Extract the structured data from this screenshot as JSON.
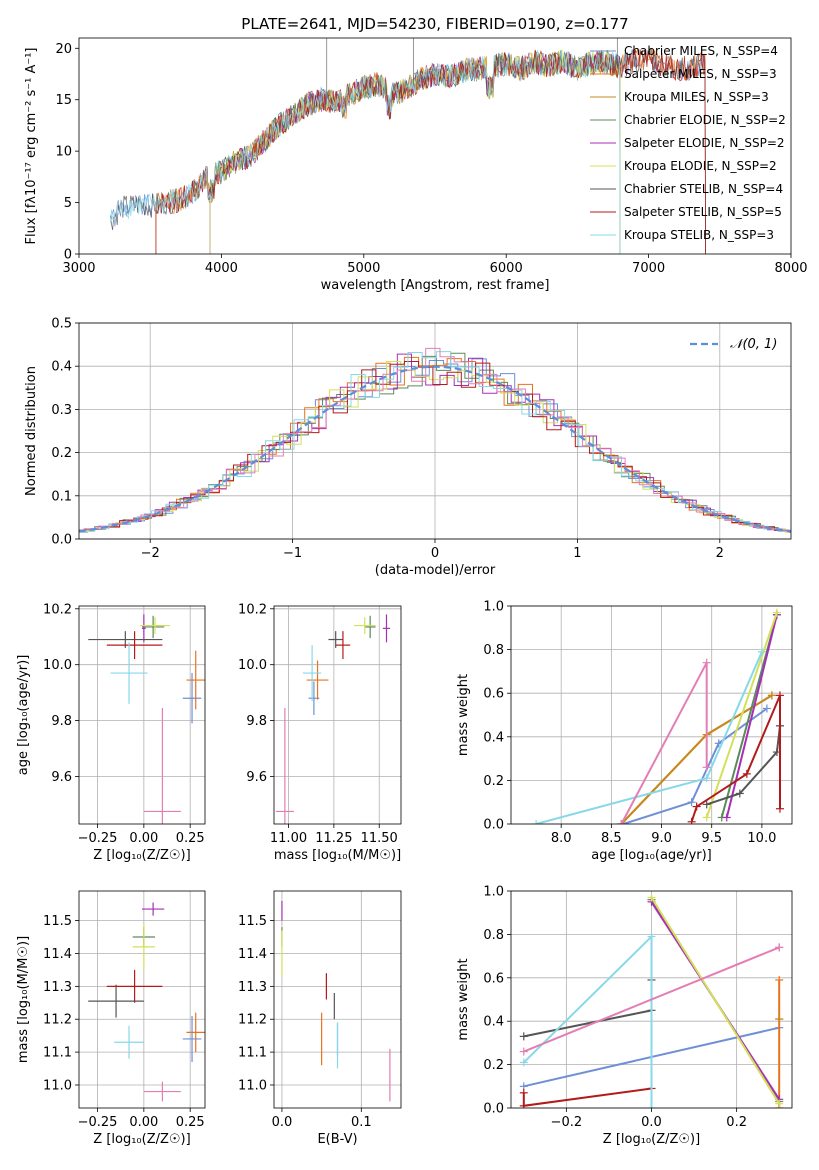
{
  "colors": {
    "chabrier_miles": "#6f8fd6",
    "salpeter_miles": "#e8731e",
    "kroupa_miles": "#c48a1c",
    "chabrier_elodie": "#5b8a5b",
    "salpeter_elodie": "#a630b3",
    "kroupa_elodie": "#d4e05a",
    "chabrier_stelib": "#555555",
    "salpeter_stelib": "#b31b1b",
    "kroupa_stelib": "#87d8e8",
    "pink": "#e37eb5",
    "normal": "#5b8fd9"
  },
  "chart_data": [
    {
      "type": "line",
      "title": "PLATE=2641, MJD=54230, FIBERID=0190, z=0.177",
      "xlabel": "wavelength [Angstrom, rest frame]",
      "ylabel": "Flux [fλ10⁻¹⁷ erg cm⁻² s⁻¹ A⁻¹]",
      "xlim": [
        3000,
        8000
      ],
      "ylim": [
        0,
        21
      ],
      "xticks": [
        3000,
        4000,
        5000,
        6000,
        7000,
        8000
      ],
      "yticks": [
        0,
        5,
        10,
        15,
        20
      ],
      "legend_position": "top-right",
      "series": [
        {
          "name": "Chabrier MILES, N_SSP=4",
          "color_key": "chabrier_miles"
        },
        {
          "name": "Salpeter MILES, N_SSP=3",
          "color_key": "salpeter_miles"
        },
        {
          "name": "Kroupa MILES, N_SSP=3",
          "color_key": "kroupa_miles"
        },
        {
          "name": "Chabrier ELODIE, N_SSP=2",
          "color_key": "chabrier_elodie"
        },
        {
          "name": "Salpeter ELODIE, N_SSP=2",
          "color_key": "salpeter_elodie"
        },
        {
          "name": "Kroupa ELODIE, N_SSP=2",
          "color_key": "kroupa_elodie"
        },
        {
          "name": "Chabrier STELIB, N_SSP=4",
          "color_key": "chabrier_stelib"
        },
        {
          "name": "Salpeter STELIB, N_SSP=5",
          "color_key": "salpeter_stelib"
        },
        {
          "name": "Kroupa STELIB, N_SSP=3",
          "color_key": "kroupa_stelib"
        }
      ],
      "spectrum_envelope": {
        "x": [
          3220,
          3300,
          3400,
          3500,
          3600,
          3700,
          3800,
          3900,
          4000,
          4100,
          4200,
          4300,
          4400,
          4500,
          4600,
          4700,
          4800,
          4900,
          5000,
          5100,
          5200,
          5300,
          5400,
          5500,
          5600,
          5700,
          5800,
          5900,
          6000,
          6100,
          6200,
          6300,
          6400,
          6500,
          6600,
          6700,
          6800,
          6900,
          7000,
          7100,
          7200,
          7300,
          7400
        ],
        "y": [
          3.2,
          4.5,
          4.8,
          4.7,
          5.0,
          5.2,
          6.0,
          7.5,
          8.0,
          9.0,
          9.5,
          11.0,
          12.5,
          13.5,
          14.5,
          15.0,
          14.8,
          15.5,
          16.2,
          16.5,
          15.5,
          16.0,
          17.0,
          17.5,
          17.2,
          17.8,
          18.0,
          18.2,
          18.5,
          18.0,
          18.7,
          18.3,
          18.8,
          18.0,
          18.6,
          18.7,
          18.2,
          18.8,
          19.0,
          18.4,
          18.0,
          18.1,
          18.5
        ]
      }
    },
    {
      "type": "histogram",
      "xlabel": "(data-model)/error",
      "ylabel": "Normed distribution",
      "xlim": [
        -2.5,
        2.5
      ],
      "ylim": [
        0,
        0.5
      ],
      "xticks": [
        -2,
        -1,
        0,
        1,
        2
      ],
      "yticks": [
        0.0,
        0.1,
        0.2,
        0.3,
        0.4,
        0.5
      ],
      "reference_curve": {
        "name": "𝒩(0, 1)",
        "mean": 0,
        "sigma": 1,
        "style": "dashed"
      },
      "bin_width": 0.1
    },
    {
      "type": "scatter",
      "xlabel": "Z [log₁₀(Z/Z☉)]",
      "ylabel": "age  [log₁₀(age/yr)]",
      "xlim": [
        -0.35,
        0.33
      ],
      "ylim": [
        9.43,
        10.21
      ],
      "xticks": [
        -0.25,
        0.0,
        0.25
      ],
      "yticks": [
        9.6,
        9.8,
        10.0,
        10.2
      ],
      "points": [
        {
          "color_key": "chabrier_miles",
          "x": 0.26,
          "y": 9.88,
          "xerr": 0.05,
          "yerr": 0.09
        },
        {
          "color_key": "salpeter_miles",
          "x": 0.28,
          "y": 9.945,
          "xerr": 0.05,
          "yerr": 0.105
        },
        {
          "color_key": "chabrier_elodie",
          "x": 0.05,
          "y": 10.135,
          "xerr": 0.06,
          "yerr": 0.04
        },
        {
          "color_key": "salpeter_elodie",
          "x": 0.0,
          "y": 10.13,
          "xerr": 0.01,
          "yerr": 0.05
        },
        {
          "color_key": "kroupa_elodie",
          "x": 0.06,
          "y": 10.14,
          "xerr": 0.08,
          "yerr": 0.03
        },
        {
          "color_key": "chabrier_stelib",
          "x": -0.1,
          "y": 10.09,
          "xerr": 0.2,
          "yerr": 0.03
        },
        {
          "color_key": "salpeter_stelib",
          "x": -0.05,
          "y": 10.07,
          "xerr": 0.15,
          "yerr": 0.05
        },
        {
          "color_key": "kroupa_stelib",
          "x": -0.08,
          "y": 9.97,
          "xerr": 0.1,
          "yerr": 0.11
        },
        {
          "color_key": "pink",
          "x": 0.1,
          "y": 9.475,
          "xerr": 0.1,
          "yerr": 0.37
        }
      ]
    },
    {
      "type": "scatter",
      "xlabel": "mass [log₁₀(M/M☉)]",
      "ylabel": "",
      "xlim": [
        10.92,
        11.62
      ],
      "ylim": [
        9.43,
        10.21
      ],
      "xticks": [
        11.0,
        11.25,
        11.5
      ],
      "yticks": [
        9.6,
        9.8,
        10.0,
        10.2
      ],
      "points": [
        {
          "color_key": "chabrier_miles",
          "x": 11.14,
          "y": 9.88,
          "xerr": 0.03,
          "yerr": 0.06
        },
        {
          "color_key": "salpeter_miles",
          "x": 11.16,
          "y": 9.945,
          "xerr": 0.06,
          "yerr": 0.07
        },
        {
          "color_key": "chabrier_elodie",
          "x": 11.45,
          "y": 10.135,
          "xerr": 0.03,
          "yerr": 0.04
        },
        {
          "color_key": "salpeter_elodie",
          "x": 11.54,
          "y": 10.13,
          "xerr": 0.02,
          "yerr": 0.05
        },
        {
          "color_key": "kroupa_elodie",
          "x": 11.42,
          "y": 10.14,
          "xerr": 0.06,
          "yerr": 0.03
        },
        {
          "color_key": "chabrier_stelib",
          "x": 11.26,
          "y": 10.09,
          "xerr": 0.04,
          "yerr": 0.03
        },
        {
          "color_key": "salpeter_stelib",
          "x": 11.3,
          "y": 10.07,
          "xerr": 0.04,
          "yerr": 0.05
        },
        {
          "color_key": "kroupa_stelib",
          "x": 11.13,
          "y": 9.97,
          "xerr": 0.05,
          "yerr": 0.1
        },
        {
          "color_key": "pink",
          "x": 10.98,
          "y": 9.475,
          "xerr": 0.05,
          "yerr": 0.37
        }
      ]
    },
    {
      "type": "line",
      "xlabel": "age  [log₁₀(age/yr)]",
      "ylabel": "mass weight",
      "xlim": [
        7.5,
        10.3
      ],
      "ylim": [
        0,
        1
      ],
      "xticks": [
        8.0,
        8.5,
        9.0,
        9.5,
        10.0
      ],
      "yticks": [
        0.0,
        0.2,
        0.4,
        0.6,
        0.8,
        1.0
      ],
      "series": [
        {
          "color_key": "chabrier_miles",
          "x": [
            8.62,
            9.3,
            9.57,
            10.05
          ],
          "y": [
            0.0,
            0.1,
            0.37,
            0.53
          ]
        },
        {
          "color_key": "salpeter_miles",
          "x": [
            8.6,
            9.45,
            10.1
          ],
          "y": [
            0.0,
            0.41,
            0.59
          ]
        },
        {
          "color_key": "kroupa_miles",
          "x": [
            8.6,
            9.45,
            10.1
          ],
          "y": [
            0.0,
            0.41,
            0.59
          ]
        },
        {
          "color_key": "chabrier_elodie",
          "x": [
            9.6,
            10.15
          ],
          "y": [
            0.03,
            0.96
          ]
        },
        {
          "color_key": "salpeter_elodie",
          "x": [
            9.65,
            10.15
          ],
          "y": [
            0.03,
            0.96
          ]
        },
        {
          "color_key": "kroupa_elodie",
          "x": [
            9.45,
            10.15
          ],
          "y": [
            0.03,
            0.97
          ]
        },
        {
          "color_key": "chabrier_stelib",
          "x": [
            9.45,
            9.78,
            10.15,
            10.18,
            10.18
          ],
          "y": [
            0.09,
            0.14,
            0.33,
            0.45,
            0.45
          ]
        },
        {
          "color_key": "salpeter_stelib",
          "x": [
            9.3,
            9.35,
            9.85,
            10.18,
            10.18
          ],
          "y": [
            0.01,
            0.08,
            0.23,
            0.59,
            0.07
          ]
        },
        {
          "color_key": "kroupa_stelib",
          "x": [
            7.75,
            9.45,
            10.0
          ],
          "y": [
            0.0,
            0.21,
            0.79
          ]
        },
        {
          "color_key": "pink",
          "x": [
            8.6,
            9.45,
            9.45
          ],
          "y": [
            0.0,
            0.74,
            0.26
          ]
        }
      ]
    },
    {
      "type": "scatter",
      "xlabel": "Z [log₁₀(Z/Z☉)]",
      "ylabel": "mass [log₁₀(M/M☉)]",
      "xlim": [
        -0.35,
        0.33
      ],
      "ylim": [
        10.93,
        11.59
      ],
      "xticks": [
        -0.25,
        0.0,
        0.25
      ],
      "yticks": [
        11.0,
        11.1,
        11.2,
        11.3,
        11.4,
        11.5
      ],
      "points": [
        {
          "color_key": "chabrier_miles",
          "x": 0.26,
          "y": 11.14,
          "xerr": 0.05,
          "yerr": 0.07
        },
        {
          "color_key": "salpeter_miles",
          "x": 0.28,
          "y": 11.16,
          "xerr": 0.05,
          "yerr": 0.06
        },
        {
          "color_key": "chabrier_elodie",
          "x": 0.0,
          "y": 11.45,
          "xerr": 0.06,
          "yerr": 0.03
        },
        {
          "color_key": "salpeter_elodie",
          "x": 0.05,
          "y": 11.535,
          "xerr": 0.06,
          "yerr": 0.02
        },
        {
          "color_key": "kroupa_elodie",
          "x": 0.0,
          "y": 11.42,
          "xerr": 0.06,
          "yerr": 0.07
        },
        {
          "color_key": "chabrier_stelib",
          "x": -0.15,
          "y": 11.255,
          "xerr": 0.15,
          "yerr": 0.05
        },
        {
          "color_key": "salpeter_stelib",
          "x": -0.05,
          "y": 11.3,
          "xerr": 0.15,
          "yerr": 0.05
        },
        {
          "color_key": "kroupa_stelib",
          "x": -0.08,
          "y": 11.13,
          "xerr": 0.08,
          "yerr": 0.05
        },
        {
          "color_key": "pink",
          "x": 0.1,
          "y": 10.98,
          "xerr": 0.1,
          "yerr": 0.03
        }
      ]
    },
    {
      "type": "scatter",
      "xlabel": "E(B-V)",
      "ylabel": "",
      "xlim": [
        -0.01,
        0.15
      ],
      "ylim": [
        10.93,
        11.59
      ],
      "xticks": [
        0.0,
        0.1
      ],
      "yticks": [
        11.0,
        11.1,
        11.2,
        11.3,
        11.4,
        11.5
      ],
      "points": [
        {
          "color_key": "chabrier_miles",
          "x": 0.07,
          "y": 11.14,
          "xerr": 0.0,
          "yerr": 0.05
        },
        {
          "color_key": "salpeter_miles",
          "x": 0.05,
          "y": 11.14,
          "xerr": 0.0,
          "yerr": 0.08
        },
        {
          "color_key": "chabrier_elodie",
          "x": 0.0,
          "y": 11.45,
          "xerr": 0.0,
          "yerr": 0.03
        },
        {
          "color_key": "salpeter_elodie",
          "x": 0.0,
          "y": 11.53,
          "xerr": 0.0,
          "yerr": 0.03
        },
        {
          "color_key": "kroupa_elodie",
          "x": 0.0,
          "y": 11.4,
          "xerr": 0.0,
          "yerr": 0.07
        },
        {
          "color_key": "chabrier_stelib",
          "x": 0.066,
          "y": 11.24,
          "xerr": 0.0,
          "yerr": 0.04
        },
        {
          "color_key": "salpeter_stelib",
          "x": 0.056,
          "y": 11.3,
          "xerr": 0.0,
          "yerr": 0.04
        },
        {
          "color_key": "kroupa_stelib",
          "x": 0.07,
          "y": 11.12,
          "xerr": 0.0,
          "yerr": 0.07
        },
        {
          "color_key": "pink",
          "x": 0.136,
          "y": 11.03,
          "xerr": 0.0,
          "yerr": 0.08
        }
      ]
    },
    {
      "type": "line",
      "xlabel": "Z [log₁₀(Z/Z☉)]",
      "ylabel": "mass weight",
      "xlim": [
        -0.33,
        0.33
      ],
      "ylim": [
        0,
        1
      ],
      "xticks": [
        -0.2,
        0.0,
        0.2
      ],
      "yticks": [
        0.0,
        0.2,
        0.4,
        0.6,
        0.8,
        1.0
      ],
      "series": [
        {
          "color_key": "chabrier_miles",
          "x": [
            -0.3,
            0.3
          ],
          "y": [
            0.1,
            0.37
          ]
        },
        {
          "color_key": "salpeter_miles",
          "x": [
            0.3,
            0.3
          ],
          "y": [
            0.0,
            0.59
          ]
        },
        {
          "color_key": "kroupa_miles",
          "x": [
            0.3,
            0.3
          ],
          "y": [
            0.41,
            0.41
          ]
        },
        {
          "color_key": "chabrier_elodie",
          "x": [
            0.0,
            0.3
          ],
          "y": [
            0.96,
            0.03
          ]
        },
        {
          "color_key": "salpeter_elodie",
          "x": [
            0.0,
            0.3
          ],
          "y": [
            0.95,
            0.04
          ]
        },
        {
          "color_key": "kroupa_elodie",
          "x": [
            0.0,
            0.3
          ],
          "y": [
            0.97,
            0.02
          ]
        },
        {
          "color_key": "chabrier_stelib",
          "x": [
            -0.3,
            0.0,
            0.0
          ],
          "y": [
            0.33,
            0.45,
            0.59
          ]
        },
        {
          "color_key": "salpeter_stelib",
          "x": [
            -0.3,
            -0.3,
            0.0
          ],
          "y": [
            0.07,
            0.01,
            0.09
          ]
        },
        {
          "color_key": "kroupa_stelib",
          "x": [
            -0.3,
            0.0,
            0.0
          ],
          "y": [
            0.21,
            0.79,
            0.0
          ]
        },
        {
          "color_key": "pink",
          "x": [
            -0.3,
            0.3,
            0.3
          ],
          "y": [
            0.26,
            0.74,
            0.74
          ]
        }
      ]
    }
  ]
}
